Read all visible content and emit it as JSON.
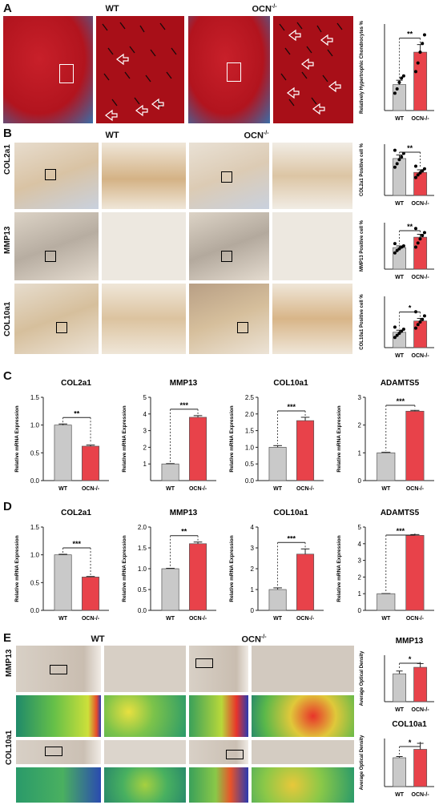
{
  "panels": {
    "A": {
      "label": "A",
      "wt": "WT",
      "ocn": "OCN",
      "sup": "-/-"
    },
    "B": {
      "label": "B",
      "wt": "WT",
      "ocn": "OCN",
      "sup": "-/-",
      "rows": [
        "COL2a1",
        "MMP13",
        "COL10a1"
      ]
    },
    "C": {
      "label": "C"
    },
    "D": {
      "label": "D"
    },
    "E": {
      "label": "E",
      "wt": "WT",
      "ocn": "OCN",
      "sup": "-/-",
      "rows": [
        "MMP13",
        "COL10a1"
      ]
    }
  },
  "colors": {
    "wt": "#c9c9c9",
    "ocn": "#e8424a",
    "edge": "#555555"
  },
  "chart_data": [
    {
      "id": "A-hyper",
      "type": "bar",
      "title": "",
      "xlabel": "",
      "ylabel": "Relatively Hypertrophic Chondrocytes %",
      "categories": [
        "WT",
        "OCN-/-"
      ],
      "values": [
        12,
        27
      ],
      "errors": [
        2,
        3.5
      ],
      "ylim": [
        0,
        40
      ],
      "sig": "**",
      "points": [
        [
          8,
          10,
          13,
          15,
          16
        ],
        [
          18,
          22,
          27,
          31,
          35
        ]
      ]
    },
    {
      "id": "B-col2a1",
      "type": "bar",
      "title": "",
      "xlabel": "",
      "ylabel": "COL2a1 Positive cell %",
      "categories": [
        "WT",
        "OCN-/-"
      ],
      "values": [
        72,
        45
      ],
      "errors": [
        7,
        5
      ],
      "ylim": [
        0,
        100
      ],
      "sig": "**",
      "points": [
        [
          55,
          62,
          70,
          75,
          82,
          88
        ],
        [
          35,
          40,
          44,
          48,
          52,
          57
        ]
      ]
    },
    {
      "id": "B-mmp13",
      "type": "bar",
      "title": "",
      "xlabel": "",
      "ylabel": "MMP13 Positive cell %",
      "categories": [
        "WT",
        "OCN-/-"
      ],
      "values": [
        37,
        55
      ],
      "errors": [
        3,
        5
      ],
      "ylim": [
        0,
        80
      ],
      "sig": "**",
      "points": [
        [
          28,
          32,
          35,
          38,
          40,
          44
        ],
        [
          38,
          45,
          52,
          58,
          63,
          70
        ]
      ]
    },
    {
      "id": "B-col10a1",
      "type": "bar",
      "title": "",
      "xlabel": "",
      "ylabel": "COL10a1 Positive cell %",
      "categories": [
        "WT",
        "OCN-/-"
      ],
      "values": [
        30,
        52
      ],
      "errors": [
        4,
        5
      ],
      "ylim": [
        0,
        100
      ],
      "sig": "*",
      "points": [
        [
          20,
          24,
          28,
          32,
          36,
          40
        ],
        [
          38,
          45,
          50,
          55,
          62,
          70
        ]
      ]
    },
    {
      "id": "C-col2a1",
      "type": "bar",
      "title": "COL2a1",
      "xlabel": "",
      "ylabel": "Relative mRNA Expression",
      "categories": [
        "WT",
        "OCN-/-"
      ],
      "values": [
        1.0,
        0.62
      ],
      "errors": [
        0.02,
        0.02
      ],
      "ylim": [
        0,
        1.5
      ],
      "ticks": [
        "0.0",
        "0.5",
        "1.0",
        "1.5"
      ],
      "tickvals": [
        0,
        0.5,
        1,
        1.5
      ],
      "sig": "**"
    },
    {
      "id": "C-mmp13",
      "type": "bar",
      "title": "MMP13",
      "xlabel": "",
      "ylabel": "Relative mRNA Expression",
      "categories": [
        "WT",
        "OCN-/-"
      ],
      "values": [
        1.0,
        3.8
      ],
      "errors": [
        0.02,
        0.1
      ],
      "ylim": [
        0,
        5
      ],
      "ticks": [
        "1",
        "2",
        "3",
        "4",
        "5"
      ],
      "tickvals": [
        1,
        2,
        3,
        4,
        5
      ],
      "sig": "***"
    },
    {
      "id": "C-col10a1",
      "type": "bar",
      "title": "COL10a1",
      "xlabel": "",
      "ylabel": "Relative mRNA Expression",
      "categories": [
        "WT",
        "OCN-/-"
      ],
      "values": [
        1.0,
        1.8
      ],
      "errors": [
        0.05,
        0.1
      ],
      "ylim": [
        0,
        2.5
      ],
      "ticks": [
        "0.0",
        "0.5",
        "1.0",
        "1.5",
        "2.0",
        "2.5"
      ],
      "tickvals": [
        0,
        0.5,
        1,
        1.5,
        2,
        2.5
      ],
      "sig": "***"
    },
    {
      "id": "C-adamts5",
      "type": "bar",
      "title": "ADAMTS5",
      "xlabel": "",
      "ylabel": "Relative mRNA Expression",
      "categories": [
        "WT",
        "OCN-/-"
      ],
      "values": [
        1.0,
        2.5
      ],
      "errors": [
        0.02,
        0.03
      ],
      "ylim": [
        0,
        3
      ],
      "ticks": [
        "0",
        "1",
        "2",
        "3"
      ],
      "tickvals": [
        0,
        1,
        2,
        3
      ],
      "sig": "***"
    },
    {
      "id": "D-col2a1",
      "type": "bar",
      "title": "COL2a1",
      "xlabel": "",
      "ylabel": "Relative mRNA Expression",
      "categories": [
        "WT",
        "OCN-/-"
      ],
      "values": [
        1.0,
        0.6
      ],
      "errors": [
        0.01,
        0.01
      ],
      "ylim": [
        0,
        1.5
      ],
      "ticks": [
        "0.0",
        "0.5",
        "1.0",
        "1.5"
      ],
      "tickvals": [
        0,
        0.5,
        1,
        1.5
      ],
      "sig": "***"
    },
    {
      "id": "D-mmp13",
      "type": "bar",
      "title": "MMP13",
      "xlabel": "",
      "ylabel": "Relative mRNA Expression",
      "categories": [
        "WT",
        "OCN-/-"
      ],
      "values": [
        1.0,
        1.6
      ],
      "errors": [
        0.01,
        0.04
      ],
      "ylim": [
        0,
        2.0
      ],
      "ticks": [
        "0.0",
        "0.5",
        "1.0",
        "1.5",
        "2.0"
      ],
      "tickvals": [
        0,
        0.5,
        1,
        1.5,
        2
      ],
      "sig": "**"
    },
    {
      "id": "D-col10a1",
      "type": "bar",
      "title": "COL10a1",
      "xlabel": "",
      "ylabel": "Relative mRNA Expression",
      "categories": [
        "WT",
        "OCN-/-"
      ],
      "values": [
        1.0,
        2.7
      ],
      "errors": [
        0.08,
        0.25
      ],
      "ylim": [
        0,
        4
      ],
      "ticks": [
        "0",
        "1",
        "2",
        "3",
        "4"
      ],
      "tickvals": [
        0,
        1,
        2,
        3,
        4
      ],
      "sig": "***"
    },
    {
      "id": "D-adamts5",
      "type": "bar",
      "title": "ADAMTS5",
      "xlabel": "",
      "ylabel": "Relative mRNA Expression",
      "categories": [
        "WT",
        "OCN-/-"
      ],
      "values": [
        1.0,
        4.5
      ],
      "errors": [
        0.01,
        0.05
      ],
      "ylim": [
        0,
        5
      ],
      "ticks": [
        "0",
        "1",
        "2",
        "3",
        "4",
        "5"
      ],
      "tickvals": [
        0,
        1,
        2,
        3,
        4,
        5
      ],
      "sig": "***"
    },
    {
      "id": "E-mmp13",
      "type": "bar",
      "title": "MMP13",
      "xlabel": "",
      "ylabel": "Average Optical Density",
      "categories": [
        "WT",
        "OCN-/-"
      ],
      "values": [
        0.3,
        0.37
      ],
      "errors": [
        0.03,
        0.04
      ],
      "ylim": [
        0,
        0.5
      ],
      "sig": "*"
    },
    {
      "id": "E-col10a1",
      "type": "bar",
      "title": "COL10a1",
      "xlabel": "",
      "ylabel": "Average Optical Density",
      "categories": [
        "WT",
        "OCN-/-"
      ],
      "values": [
        0.24,
        0.31
      ],
      "errors": [
        0.01,
        0.05
      ],
      "ylim": [
        0,
        0.4
      ],
      "sig": "*"
    }
  ]
}
